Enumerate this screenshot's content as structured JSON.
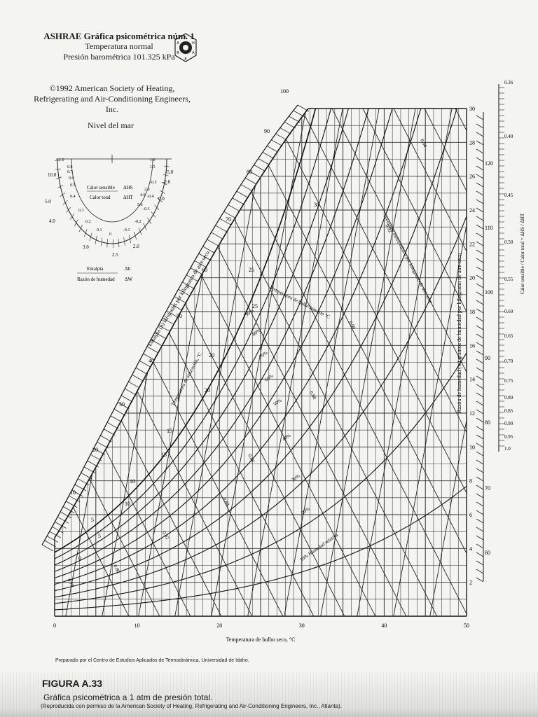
{
  "header": {
    "title": "ASHRAE Gráfica psicométrica núm. 1",
    "line2": "Temperatura normal",
    "line3": "Presión barométrica 101.325 kPa",
    "copyright1": "©1992 American Society of Heating,",
    "copyright2": "Refrigerating and Air-Conditioning Engineers, Inc.",
    "level": "Nivel del mar"
  },
  "logo": {
    "letters": [
      "S",
      "H",
      "E",
      "A",
      "R",
      "A"
    ]
  },
  "protractor": {
    "sensible_label_num": "Calor sensible",
    "sensible_label_den": "Calor total",
    "sensible_ratio_num": "ΔHS",
    "sensible_ratio_den": "ΔHT",
    "enthalpy_label_num": "Entalpía",
    "enthalpy_label_den": "Razón de humedad",
    "enthalpy_ratio_num": "Δh",
    "enthalpy_ratio_den": "ΔW",
    "outer_labels": [
      "1.0",
      "0.8",
      "0.7",
      "0.6",
      "0.5",
      "0.4",
      "0.3",
      "0.2",
      "0.1",
      "0",
      "-0.1",
      "-0.2",
      "-0.3",
      "-0.4",
      "-0.5",
      "1.0"
    ],
    "left_values": [
      "10.0",
      "5.0",
      "4.0",
      "3.0",
      "2.5",
      "2.0"
    ],
    "right_values": [
      "-5.0",
      "-2.0",
      "0.0"
    ],
    "inner_small": [
      "1.5",
      "2.0",
      "4.0",
      "5.0"
    ]
  },
  "chart_data": {
    "type": "diagram",
    "title": "ASHRAE Gráfica psicométrica núm. 1",
    "xlabel": "Temperatura de bulbo seco, °C",
    "x_ticks": [
      "0",
      "10",
      "20",
      "30",
      "40",
      "50"
    ],
    "y_ticks": [
      "2",
      "4",
      "6",
      "8",
      "10",
      "12",
      "14",
      "16",
      "18",
      "20",
      "22",
      "24",
      "26",
      "28",
      "30"
    ],
    "ylabel": "Razón de humedad (w) gramos de humedad por kilogramo de aire seco",
    "enthalpy_scale": [
      "10",
      "20",
      "30",
      "40",
      "50",
      "60",
      "70",
      "80",
      "90",
      "100"
    ],
    "enthalpy_label": "Entalpía (h) kilojoules por kilogramo de aire seco",
    "saturation_temps": [
      "5",
      "10",
      "15",
      "20",
      "25"
    ],
    "saturation_label": "Temperatura de saturación, °C",
    "wetbulb_label": "Temperatura de bulbo húmedo °C",
    "wetbulb_values": [
      "0",
      "5",
      "10",
      "15",
      "20",
      "25",
      "30"
    ],
    "rh_labels": [
      "90%",
      "80%",
      "70%",
      "60%",
      "50%",
      "40%",
      "30%",
      "20%",
      "10% Humedad relativa"
    ],
    "volume_label": "Volumen metro cúbico por kilogramo de aire seco",
    "volume_values": [
      "0.78",
      "0.80",
      "0.82",
      "0.84",
      "0.86",
      "0.88",
      "0.90",
      "0.92",
      "0.94"
    ],
    "right_enthalpy_scale": [
      "60",
      "70",
      "80",
      "90",
      "100",
      "110",
      "120"
    ],
    "shr_scale": [
      "0.36",
      "0.40",
      "0.45",
      "0.50",
      "0.55",
      "0.60",
      "0.65",
      "0.70",
      "0.75",
      "0.80",
      "0.85",
      "0.90",
      "0.95",
      "1.0"
    ],
    "shr_label": "Calor sensible / Calor total = ΔHS / ΔHT"
  },
  "captions": {
    "prepared": "Preparado por el Centro de Estudios Aplicados de Termodinámica, Universidad de Idaho.",
    "figure_id": "FIGURA A.33",
    "figure_title": "Gráfica psicométrica a 1 atm de presión total.",
    "figure_credit": "(Reproducida con permiso de la American Society of Heating, Refrigerating and Air-Conditioning Engineers, Inc., Atlanta)."
  }
}
